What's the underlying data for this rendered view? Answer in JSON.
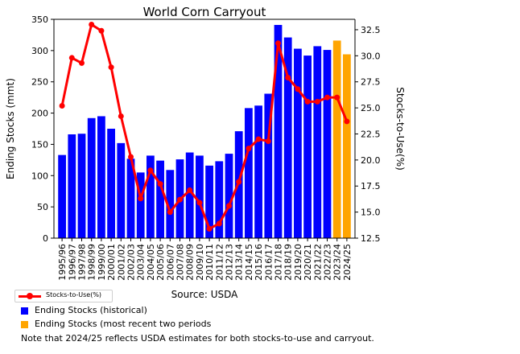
{
  "chart_data": {
    "type": "bar",
    "title": "World Corn Carryout",
    "ylabel": "Ending Stocks (mmt)",
    "y2label": "Stocks-to-Use(%)",
    "caption": "Source: USDA",
    "ylim": [
      0,
      350
    ],
    "y2lim": [
      12.5,
      33.5
    ],
    "yticks": [
      0,
      50,
      100,
      150,
      200,
      250,
      300,
      350
    ],
    "y2ticks": [
      12.5,
      15.0,
      17.5,
      20.0,
      22.5,
      25.0,
      27.5,
      30.0,
      32.5
    ],
    "grid": false,
    "categories": [
      "1995/96",
      "1996/97",
      "1997/98",
      "1998/99",
      "1999/00",
      "2000/01",
      "2001/02",
      "2002/03",
      "2003/04",
      "2004/05",
      "2005/06",
      "2006/07",
      "2007/08",
      "2008/09",
      "2009/10",
      "2010/11",
      "2011/12",
      "2012/13",
      "2013/14",
      "2014/15",
      "2015/16",
      "2016/17",
      "2017/18",
      "2018/19",
      "2019/20",
      "2020/21",
      "2021/22",
      "2022/23",
      "2023/24",
      "2024/25"
    ],
    "series": [
      {
        "name": "Ending Stocks (historical)",
        "type": "bar",
        "axis": "left",
        "color": "#0000ff",
        "values": [
          133,
          166,
          167,
          192,
          195,
          175,
          152,
          127,
          105,
          132,
          124,
          109,
          126,
          137,
          132,
          116,
          123,
          135,
          171,
          208,
          212,
          231,
          341,
          321,
          303,
          292,
          307,
          301,
          null,
          null
        ]
      },
      {
        "name": "Ending Stocks (most recent two periods",
        "type": "bar",
        "axis": "left",
        "color": "#ffa500",
        "values": [
          null,
          null,
          null,
          null,
          null,
          null,
          null,
          null,
          null,
          null,
          null,
          null,
          null,
          null,
          null,
          null,
          null,
          null,
          null,
          null,
          null,
          null,
          null,
          null,
          null,
          null,
          null,
          null,
          316,
          294
        ]
      },
      {
        "name": "Stocks-to-Use(%)",
        "type": "line",
        "axis": "right",
        "color": "#ff0000",
        "values": [
          25.2,
          29.8,
          29.3,
          33.0,
          32.4,
          28.9,
          24.2,
          20.3,
          16.3,
          19.0,
          17.7,
          15.0,
          16.2,
          17.1,
          15.9,
          13.4,
          13.9,
          15.6,
          17.9,
          21.1,
          22.0,
          21.8,
          31.2,
          27.9,
          26.8,
          25.6,
          25.6,
          26.0,
          26.0,
          23.7
        ]
      }
    ],
    "legend": [
      {
        "label": "Stocks-to-Use(%)",
        "kind": "line",
        "color": "#ff0000"
      },
      {
        "label": "Ending Stocks (historical)",
        "kind": "square",
        "color": "#0000ff"
      },
      {
        "label": "Ending Stocks (most recent two periods",
        "kind": "square",
        "color": "#ffa500"
      }
    ],
    "note": "Note that 2024/25 reflects USDA estimates for both stocks-to-use and carryout."
  }
}
